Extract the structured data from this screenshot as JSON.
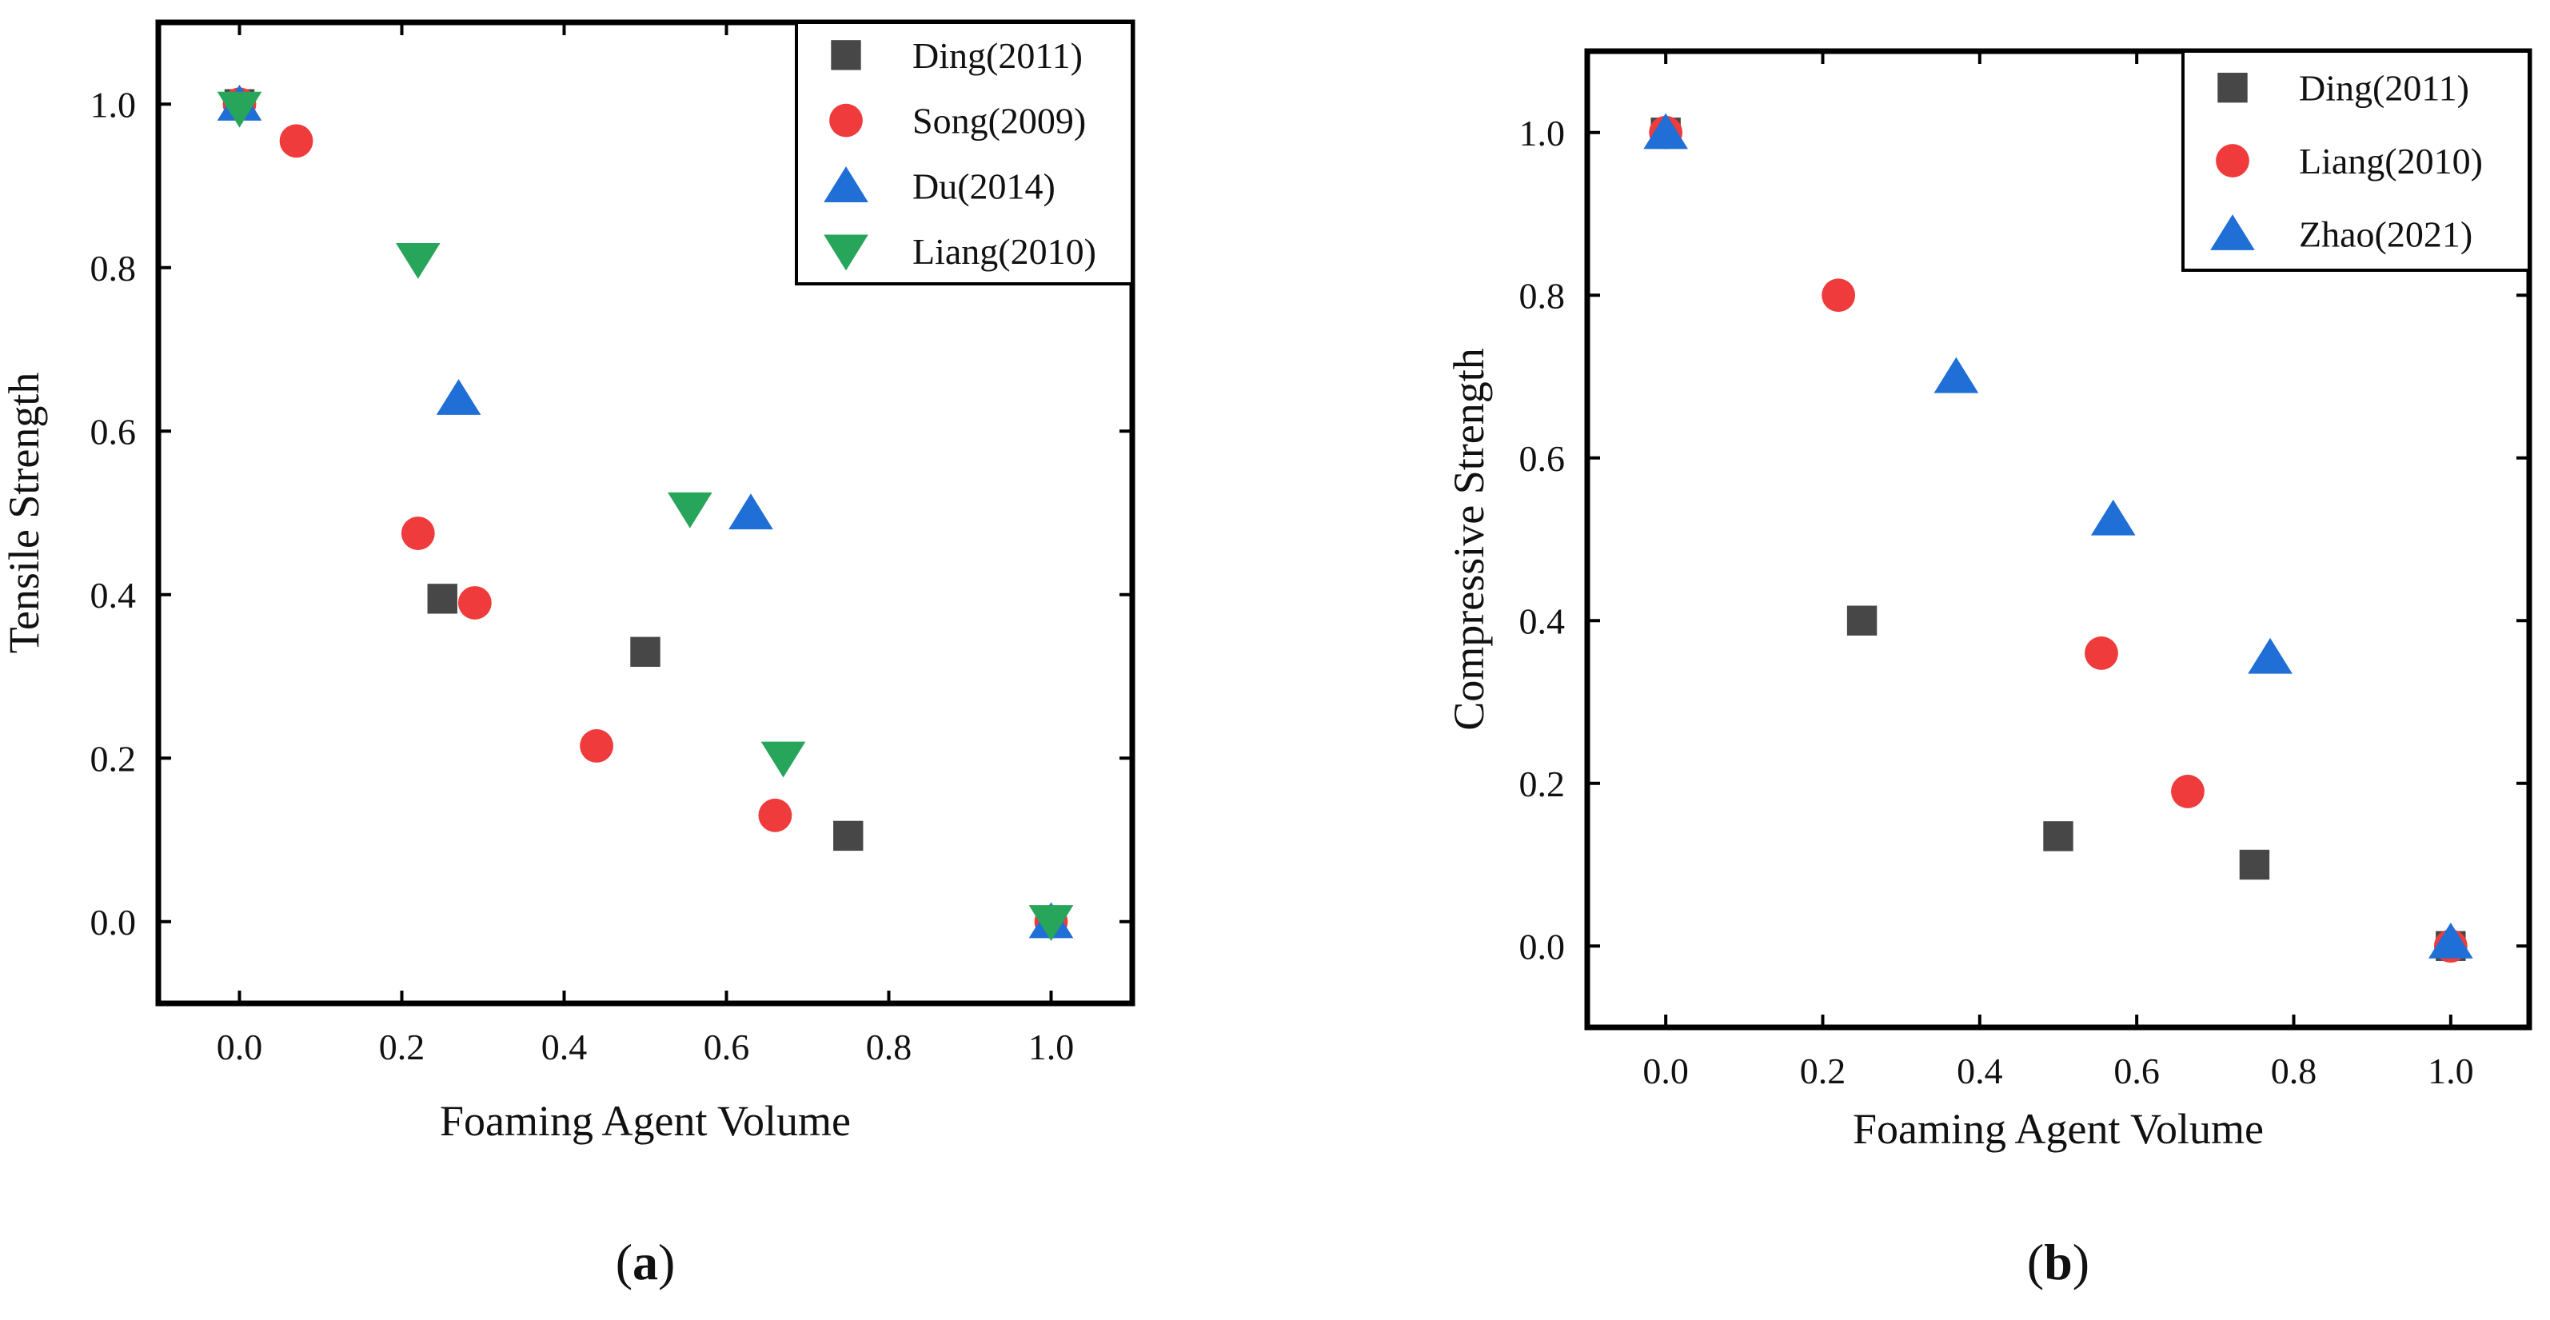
{
  "colors": {
    "square": "#474747",
    "circle": "#ef3b3b",
    "triangle_up": "#1f6fd6",
    "triangle_down": "#27a55a",
    "axis": "#000000"
  },
  "chart_data": [
    {
      "type": "scatter",
      "panel_label": "(a)",
      "xlabel": "Foaming Agent Volume",
      "ylabel": "Tensile Strength",
      "xlim": [
        -0.1,
        1.1
      ],
      "ylim": [
        -0.1,
        1.1
      ],
      "xticks": [
        "0.0",
        "0.2",
        "0.4",
        "0.6",
        "0.8",
        "1.0"
      ],
      "yticks": [
        "0.0",
        "0.2",
        "0.4",
        "0.6",
        "0.8",
        "1.0"
      ],
      "legend_position": "top-right",
      "series": [
        {
          "name": "Ding(2011)",
          "marker": "square",
          "x": [
            0.0,
            0.25,
            0.5,
            0.75,
            1.0
          ],
          "y": [
            1.0,
            0.395,
            0.33,
            0.105,
            0.0
          ]
        },
        {
          "name": "Song(2009)",
          "marker": "circle",
          "x": [
            0.0,
            0.07,
            0.22,
            0.29,
            0.44,
            0.66,
            1.0
          ],
          "y": [
            1.0,
            0.955,
            0.475,
            0.39,
            0.215,
            0.13,
            0.0
          ]
        },
        {
          "name": "Du(2014)",
          "marker": "triangle_up",
          "x": [
            0.0,
            0.27,
            0.63,
            1.0
          ],
          "y": [
            1.0,
            0.64,
            0.5,
            0.0
          ]
        },
        {
          "name": "Liang(2010)",
          "marker": "triangle_down",
          "x": [
            0.0,
            0.22,
            0.555,
            0.67,
            1.0
          ],
          "y": [
            0.995,
            0.81,
            0.505,
            0.2,
            0.0
          ]
        }
      ]
    },
    {
      "type": "scatter",
      "panel_label": "(b)",
      "xlabel": "Foaming Agent Volume",
      "ylabel": "Compressive Strength",
      "xlim": [
        -0.1,
        1.1
      ],
      "ylim": [
        -0.1,
        1.1
      ],
      "xticks": [
        "0.0",
        "0.2",
        "0.4",
        "0.6",
        "0.8",
        "1.0"
      ],
      "yticks": [
        "0.0",
        "0.2",
        "0.4",
        "0.6",
        "0.8",
        "1.0"
      ],
      "legend_position": "top-right",
      "series": [
        {
          "name": "Ding(2011)",
          "marker": "square",
          "x": [
            0.0,
            0.25,
            0.5,
            0.75,
            1.0
          ],
          "y": [
            1.0,
            0.4,
            0.135,
            0.1,
            0.0
          ]
        },
        {
          "name": "Liang(2010)",
          "marker": "circle",
          "x": [
            0.0,
            0.22,
            0.555,
            0.665,
            1.0
          ],
          "y": [
            1.0,
            0.8,
            0.36,
            0.19,
            0.0
          ]
        },
        {
          "name": "Zhao(2021)",
          "marker": "triangle_up",
          "x": [
            0.0,
            0.37,
            0.57,
            0.77,
            1.0
          ],
          "y": [
            1.0,
            0.7,
            0.525,
            0.355,
            0.005
          ]
        }
      ]
    }
  ]
}
